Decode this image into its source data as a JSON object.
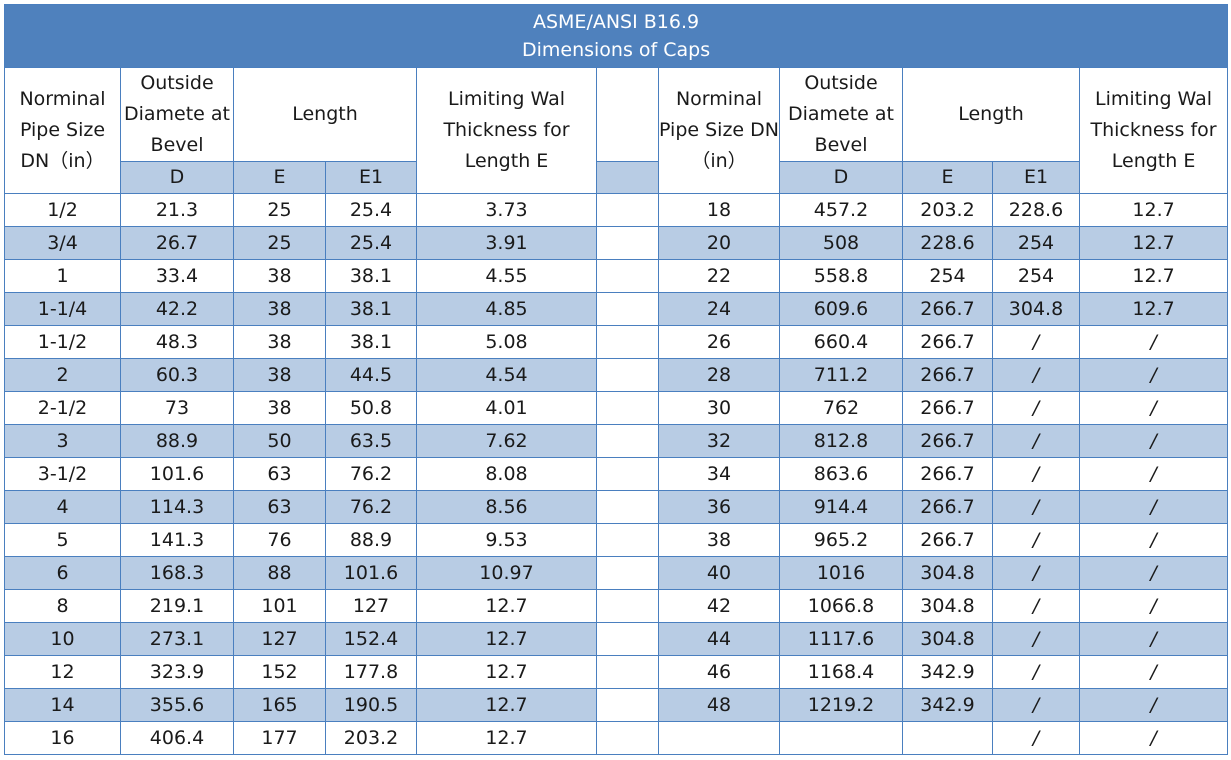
{
  "title": {
    "line1": "ASME/ANSI B16.9",
    "line2": "Dimensions of Caps"
  },
  "header": {
    "nps": "Norminal Pipe Size DN（in）",
    "od": "Outside Diamete at Bevel",
    "length": "Length",
    "limiting": "Limiting Wal Thickness for Length E",
    "d": "D",
    "e": "E",
    "e1": "E1"
  },
  "left_rows": [
    {
      "nps": "1/2",
      "d": "21.3",
      "e": "25",
      "e1": "25.4",
      "t": "3.73"
    },
    {
      "nps": "3/4",
      "d": "26.7",
      "e": "25",
      "e1": "25.4",
      "t": "3.91"
    },
    {
      "nps": "1",
      "d": "33.4",
      "e": "38",
      "e1": "38.1",
      "t": "4.55"
    },
    {
      "nps": "1-1/4",
      "d": "42.2",
      "e": "38",
      "e1": "38.1",
      "t": "4.85"
    },
    {
      "nps": "1-1/2",
      "d": "48.3",
      "e": "38",
      "e1": "38.1",
      "t": "5.08"
    },
    {
      "nps": "2",
      "d": "60.3",
      "e": "38",
      "e1": "44.5",
      "t": "4.54"
    },
    {
      "nps": "2-1/2",
      "d": "73",
      "e": "38",
      "e1": "50.8",
      "t": "4.01"
    },
    {
      "nps": "3",
      "d": "88.9",
      "e": "50",
      "e1": "63.5",
      "t": "7.62"
    },
    {
      "nps": "3-1/2",
      "d": "101.6",
      "e": "63",
      "e1": "76.2",
      "t": "8.08"
    },
    {
      "nps": "4",
      "d": "114.3",
      "e": "63",
      "e1": "76.2",
      "t": "8.56"
    },
    {
      "nps": "5",
      "d": "141.3",
      "e": "76",
      "e1": "88.9",
      "t": "9.53"
    },
    {
      "nps": "6",
      "d": "168.3",
      "e": "88",
      "e1": "101.6",
      "t": "10.97"
    },
    {
      "nps": "8",
      "d": "219.1",
      "e": "101",
      "e1": "127",
      "t": "12.7"
    },
    {
      "nps": "10",
      "d": "273.1",
      "e": "127",
      "e1": "152.4",
      "t": "12.7"
    },
    {
      "nps": "12",
      "d": "323.9",
      "e": "152",
      "e1": "177.8",
      "t": "12.7"
    },
    {
      "nps": "14",
      "d": "355.6",
      "e": "165",
      "e1": "190.5",
      "t": "12.7"
    },
    {
      "nps": "16",
      "d": "406.4",
      "e": "177",
      "e1": "203.2",
      "t": "12.7"
    }
  ],
  "right_rows": [
    {
      "nps": "18",
      "d": "457.2",
      "e": "203.2",
      "e1": "228.6",
      "t": "12.7"
    },
    {
      "nps": "20",
      "d": "508",
      "e": "228.6",
      "e1": "254",
      "t": "12.7"
    },
    {
      "nps": "22",
      "d": "558.8",
      "e": "254",
      "e1": "254",
      "t": "12.7"
    },
    {
      "nps": "24",
      "d": "609.6",
      "e": "266.7",
      "e1": "304.8",
      "t": "12.7"
    },
    {
      "nps": "26",
      "d": "660.4",
      "e": "266.7",
      "e1": "/",
      "t": "/"
    },
    {
      "nps": "28",
      "d": "711.2",
      "e": "266.7",
      "e1": "/",
      "t": "/"
    },
    {
      "nps": "30",
      "d": "762",
      "e": "266.7",
      "e1": "/",
      "t": "/"
    },
    {
      "nps": "32",
      "d": "812.8",
      "e": "266.7",
      "e1": "/",
      "t": "/"
    },
    {
      "nps": "34",
      "d": "863.6",
      "e": "266.7",
      "e1": "/",
      "t": "/"
    },
    {
      "nps": "36",
      "d": "914.4",
      "e": "266.7",
      "e1": "/",
      "t": "/"
    },
    {
      "nps": "38",
      "d": "965.2",
      "e": "266.7",
      "e1": "/",
      "t": "/"
    },
    {
      "nps": "40",
      "d": "1016",
      "e": "304.8",
      "e1": "/",
      "t": "/"
    },
    {
      "nps": "42",
      "d": "1066.8",
      "e": "304.8",
      "e1": "/",
      "t": "/"
    },
    {
      "nps": "44",
      "d": "1117.6",
      "e": "304.8",
      "e1": "/",
      "t": "/"
    },
    {
      "nps": "46",
      "d": "1168.4",
      "e": "342.9",
      "e1": "/",
      "t": "/"
    },
    {
      "nps": "48",
      "d": "1219.2",
      "e": "342.9",
      "e1": "/",
      "t": "/"
    },
    {
      "nps": "",
      "d": "",
      "e": "",
      "e1": "/",
      "t": "/"
    }
  ],
  "colors": {
    "title_bg": "#4f81bd",
    "band_bg": "#b8cce4",
    "border": "#4a7fbf"
  }
}
